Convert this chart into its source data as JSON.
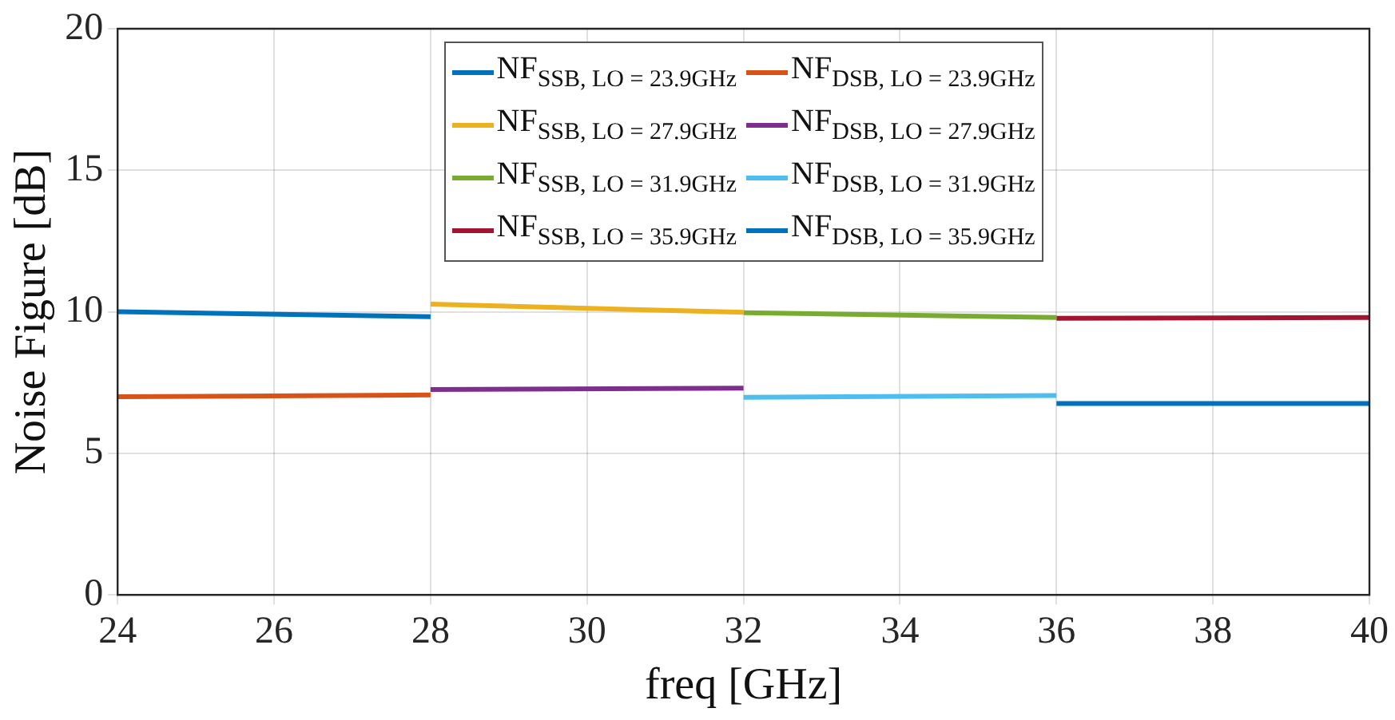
{
  "chart_data": {
    "type": "line",
    "xlabel": "freq [GHz]",
    "ylabel": "Noise Figure [dB]",
    "xlim": [
      24,
      40
    ],
    "xticks": [
      24,
      26,
      28,
      30,
      32,
      34,
      36,
      38,
      40
    ],
    "ylim": [
      0,
      20
    ],
    "yticks": [
      0,
      5,
      10,
      15,
      20
    ],
    "grid": true,
    "legend": "top",
    "marker": "none",
    "line_style": "solid",
    "series": [
      {
        "name": "NF$_{SSB, LO = 23.9GHz}$",
        "color": "#0072bd",
        "x": [
          24,
          28
        ],
        "values": [
          10.0,
          9.83
        ]
      },
      {
        "name": "NF$_{DSB, LO = 23.9GHz}$",
        "color": "#d95319",
        "x": [
          24,
          28
        ],
        "values": [
          7.0,
          7.06
        ]
      },
      {
        "name": "NF$_{SSB, LO = 27.9GHz}$",
        "color": "#edb120",
        "x": [
          28,
          32
        ],
        "values": [
          10.27,
          9.98
        ]
      },
      {
        "name": "NF$_{DSB, LO = 27.9GHz}$",
        "color": "#7e2f8e",
        "x": [
          28,
          32
        ],
        "values": [
          7.25,
          7.3
        ]
      },
      {
        "name": "NF$_{SSB, LO = 31.9GHz}$",
        "color": "#77ac30",
        "x": [
          32,
          36
        ],
        "values": [
          9.97,
          9.8
        ]
      },
      {
        "name": "NF$_{DSB, LO = 31.9GHz}$",
        "color": "#4dbeee",
        "x": [
          32,
          36
        ],
        "values": [
          6.98,
          7.04
        ]
      },
      {
        "name": "NF$_{SSB, LO = 35.9GHz}$",
        "color": "#a2142f",
        "x": [
          36,
          40
        ],
        "values": [
          9.77,
          9.8
        ]
      },
      {
        "name": "NF$_{DSB, LO = 35.9GHz}$",
        "color": "#0072bd",
        "x": [
          36,
          40
        ],
        "values": [
          6.76,
          6.76
        ]
      }
    ]
  }
}
